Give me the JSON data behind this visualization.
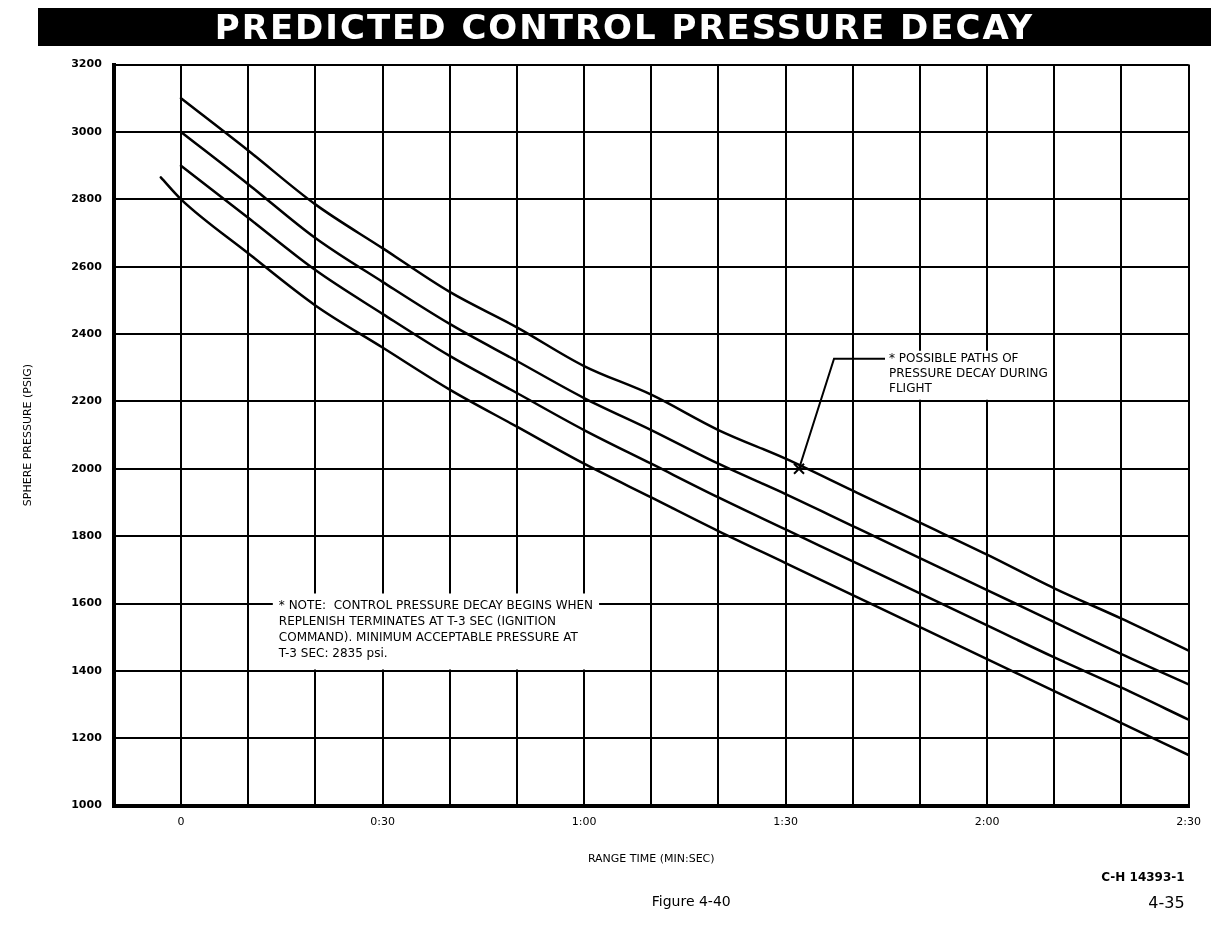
{
  "chart_data": {
    "type": "line",
    "title": "PREDICTED CONTROL PRESSURE DECAY",
    "xlabel": "RANGE TIME (MIN:SEC)",
    "ylabel": "SPHERE PRESSURE (PSIG)",
    "x": [
      0,
      10,
      20,
      30,
      40,
      50,
      60,
      70,
      80,
      90,
      100,
      110,
      120,
      130,
      140,
      150
    ],
    "series": [
      {
        "color": "#000000",
        "values": [
          3100,
          2945,
          2785,
          2655,
          2525,
          2420,
          2305,
          2220,
          2115,
          2030,
          1935,
          1840,
          1745,
          1645,
          1555,
          1460
        ]
      },
      {
        "color": "#000000",
        "values": [
          3000,
          2845,
          2685,
          2555,
          2430,
          2320,
          2210,
          2115,
          2015,
          1925,
          1830,
          1735,
          1640,
          1545,
          1450,
          1360
        ]
      },
      {
        "color": "#000000",
        "values": [
          2900,
          2745,
          2590,
          2460,
          2335,
          2225,
          2115,
          2015,
          1915,
          1820,
          1725,
          1630,
          1535,
          1440,
          1350,
          1255
        ]
      },
      {
        "color": "#000000",
        "x": [
          -3,
          0,
          10,
          20,
          30,
          40,
          50,
          60,
          70,
          80,
          90,
          100,
          110,
          120,
          130,
          140,
          150
        ],
        "values": [
          2865,
          2800,
          2640,
          2485,
          2360,
          2235,
          2125,
          2015,
          1915,
          1815,
          1720,
          1625,
          1530,
          1435,
          1340,
          1245,
          1150
        ]
      }
    ],
    "xlim": [
      -10,
      150
    ],
    "xticks": [
      {
        "value": -10,
        "label": null
      },
      0,
      {
        "value": 10,
        "label": null
      },
      {
        "value": 20,
        "label": null
      },
      {
        "value": 30,
        "label": "0:30"
      },
      {
        "value": 40,
        "label": null
      },
      {
        "value": 50,
        "label": null
      },
      {
        "value": 60,
        "label": "1:00"
      },
      {
        "value": 70,
        "label": null
      },
      {
        "value": 80,
        "label": null
      },
      {
        "value": 90,
        "label": "1:30"
      },
      {
        "value": 100,
        "label": null
      },
      {
        "value": 110,
        "label": null
      },
      {
        "value": 120,
        "label": "2:00"
      },
      {
        "value": 130,
        "label": null
      },
      {
        "value": 140,
        "label": null
      },
      {
        "value": 150,
        "label": "2:30"
      }
    ],
    "ylim": [
      1000,
      3200
    ],
    "yticks": [
      1000,
      1200,
      1400,
      1600,
      1800,
      2000,
      2200,
      2400,
      2600,
      2800,
      3000,
      3200
    ],
    "grid": true,
    "legend": false,
    "marker": "none",
    "line_style": "solid",
    "annotations": [
      "* NOTE:  CONTROL PRESSURE DECAY BEGINS WHEN REPLENISH TERMINATES AT T-3 SEC (IGNITION COMMAND). MINIMUM ACCEPTABLE PRESSURE AT T-3 SEC: 2835 psi.",
      "Figure 4-40",
      "C-H 14393-1",
      "4-35",
      {
        "text": "* POSSIBLE PATHS OF PRESSURE DECAY DURING FLIGHT",
        "x": 92,
        "y": 2000
      }
    ]
  }
}
